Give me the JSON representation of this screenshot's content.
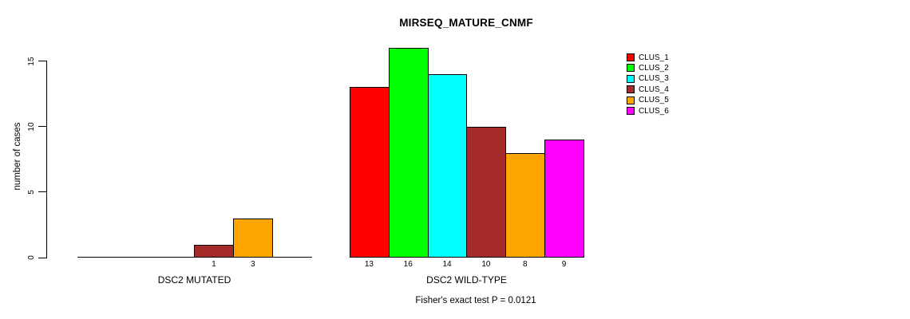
{
  "chart_data": {
    "type": "bar",
    "title": "MIRSEQ_MATURE_CNMF",
    "ylabel": "number of cases",
    "ylim": [
      0,
      15
    ],
    "yticks": [
      0,
      5,
      10,
      15
    ],
    "grid": false,
    "legend_position": "right",
    "clusters": [
      {
        "name": "CLUS_1",
        "color": "#ff0000"
      },
      {
        "name": "CLUS_2",
        "color": "#00ff00"
      },
      {
        "name": "CLUS_3",
        "color": "#00ffff"
      },
      {
        "name": "CLUS_4",
        "color": "#a52a2a"
      },
      {
        "name": "CLUS_5",
        "color": "#ffa500"
      },
      {
        "name": "CLUS_6",
        "color": "#ff00ff"
      }
    ],
    "groups": [
      {
        "label": "DSC2 MUTATED",
        "values": [
          0,
          0,
          0,
          1,
          3,
          0
        ]
      },
      {
        "label": "DSC2 WILD-TYPE",
        "values": [
          13,
          16,
          14,
          10,
          8,
          9
        ]
      }
    ],
    "footnote": "Fisher's exact test P = 0.0121"
  }
}
